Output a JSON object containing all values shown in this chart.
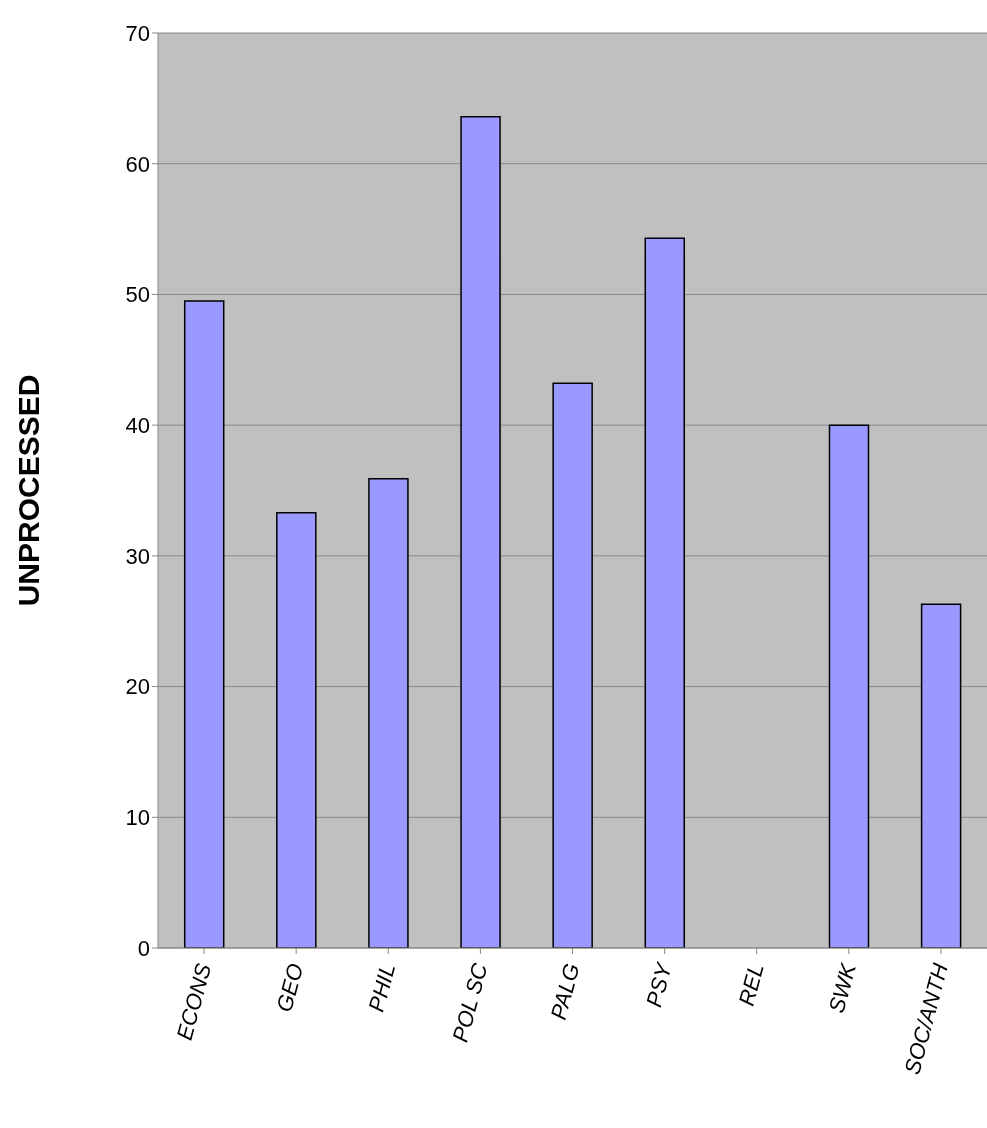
{
  "chart_data": {
    "type": "bar",
    "ylabel": "UNPROCESSED",
    "categories": [
      "ECONS",
      "GEO",
      "PHIL",
      "POL SC",
      "PALG",
      "PSY",
      "REL",
      "SWK",
      "SOC/ANTH"
    ],
    "values": [
      49.5,
      33.3,
      35.9,
      63.6,
      43.2,
      54.3,
      0,
      40,
      26.3
    ],
    "color": "#9999ff",
    "ylim": [
      0,
      70
    ],
    "yticks": [
      0,
      10,
      20,
      30,
      40,
      50,
      60,
      70
    ],
    "grid": "y"
  }
}
